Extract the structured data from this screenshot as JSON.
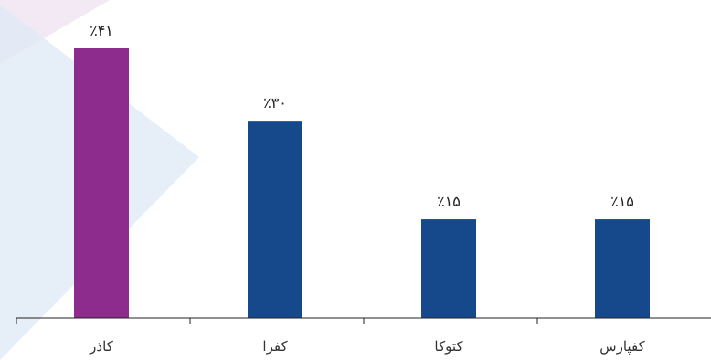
{
  "chart_data": {
    "type": "bar",
    "categories": [
      "کاذر",
      "کفرا",
      "کتوکا",
      "کفپارس"
    ],
    "values": [
      41,
      30,
      15,
      15
    ],
    "value_labels": [
      "٪۴۱",
      "٪۳۰",
      "٪۱۵",
      "٪۱۵"
    ],
    "unit": "%",
    "ylim": [
      0,
      41
    ],
    "grid": false,
    "legend": "none",
    "bar_colors": [
      "#8E2C8D",
      "#15498B",
      "#15498B",
      "#15498B"
    ],
    "axis_color": "#222222",
    "background_shape_colors": [
      "#DDEAF6",
      "#EFE4F1"
    ]
  }
}
